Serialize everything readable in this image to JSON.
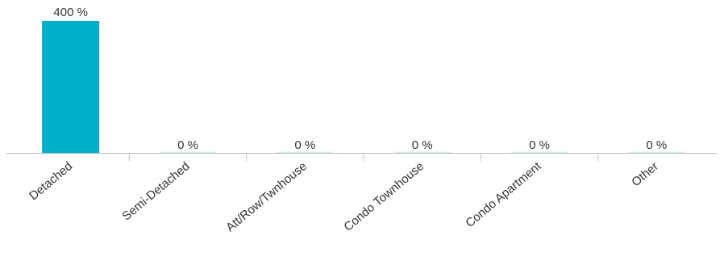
{
  "chart_data": {
    "type": "bar",
    "title": "",
    "xlabel": "",
    "ylabel": "",
    "categories": [
      "Detached",
      "Semi-Detached",
      "Att/Row/Twnhouse",
      "Condo Townhouse",
      "Condo Apartment",
      "Other"
    ],
    "values": [
      400,
      0,
      0,
      0,
      0,
      0
    ],
    "data_labels": [
      "400 %",
      "0 %",
      "0 %",
      "0 %",
      "0 %",
      "0 %"
    ],
    "ylim": [
      0,
      400
    ],
    "grid": false,
    "legend": "none",
    "colors": {
      "bar": "#00aec7",
      "zero_bar": "#d9eef2",
      "axis": "#c0c0c0",
      "text": "#333333"
    }
  }
}
